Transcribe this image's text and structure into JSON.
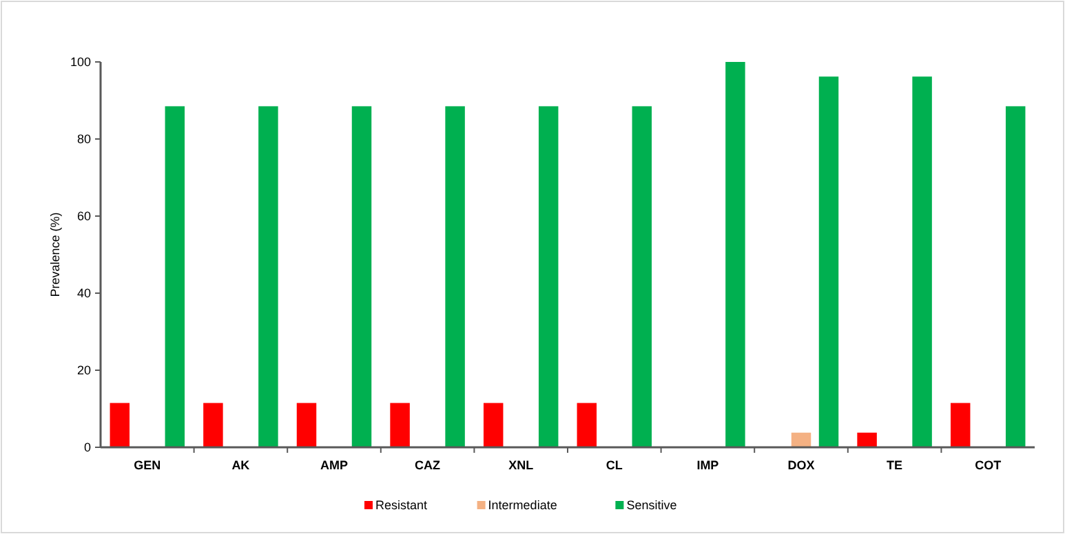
{
  "chart_data": {
    "type": "bar",
    "ylabel": "Prevalence (%)",
    "categories": [
      "GEN",
      "AK",
      "AMP",
      "CAZ",
      "XNL",
      "CL",
      "IMP",
      "DOX",
      "TE",
      "COT"
    ],
    "series": [
      {
        "name": "Resistant",
        "color": "#ff0000",
        "values": [
          11.5,
          11.5,
          11.5,
          11.5,
          11.5,
          11.5,
          0,
          0,
          3.8,
          11.5
        ]
      },
      {
        "name": "Intermediate",
        "color": "#f4b183",
        "values": [
          0,
          0,
          0,
          0,
          0,
          0,
          0,
          3.8,
          0,
          0
        ]
      },
      {
        "name": "Sensitive",
        "color": "#00b050",
        "values": [
          88.5,
          88.5,
          88.5,
          88.5,
          88.5,
          88.5,
          100,
          96.2,
          96.2,
          88.5
        ]
      }
    ],
    "ylim": [
      0,
      100
    ],
    "yticks": [
      0,
      20,
      40,
      60,
      80,
      100
    ],
    "grid": false,
    "legend": "bottom"
  }
}
